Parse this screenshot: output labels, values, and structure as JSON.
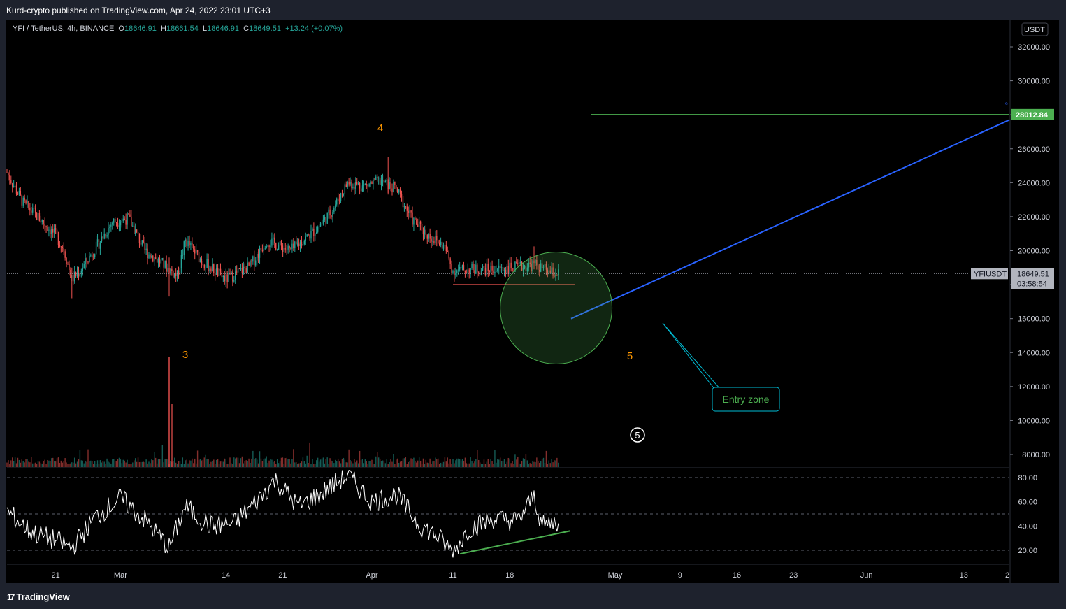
{
  "header": {
    "published": "Kurd-crypto published on TradingView.com, Apr 24, 2022 23:01 UTC+3"
  },
  "legend": {
    "symbol": "YFI / TetherUS, 4h, BINANCE",
    "o_label": "O",
    "o_value": "18646.91",
    "h_label": "H",
    "h_value": "18661.54",
    "l_label": "L",
    "l_value": "18646.91",
    "c_label": "C",
    "c_value": "18649.51",
    "change": "+13.24 (+0.07%)"
  },
  "currency_badge": "USDT",
  "price_scale": [
    "32000.00",
    "30000.00",
    "28000.00",
    "26000.00",
    "24000.00",
    "22000.00",
    "20000.00",
    "18000.00",
    "16000.00",
    "14000.00",
    "12000.00",
    "10000.00",
    "8000.00"
  ],
  "target_label": "28012.84",
  "last_price": {
    "symbol": "YFIUSDT",
    "value": "18649.51",
    "countdown": "03:58:54"
  },
  "rsi_scale": [
    "80.00",
    "60.00",
    "40.00",
    "20.00"
  ],
  "time_axis": [
    "21",
    "Mar",
    "14",
    "21",
    "Apr",
    "11",
    "18",
    "May",
    "9",
    "16",
    "23",
    "Jun",
    "13",
    "2"
  ],
  "annotations": {
    "wave3": "3",
    "wave4": "4",
    "wave5": "5",
    "wave5_circled": "5",
    "entry_zone": "Entry zone"
  },
  "footer": {
    "brand": "TradingView"
  },
  "colors": {
    "up": "#26a69a",
    "down": "#ef5350",
    "target": "#4caf50",
    "projection": "#2962ff",
    "wave_label": "#ff9800",
    "callout": "#00bcd4",
    "callout_text": "#4caf50",
    "rsi": "#ffffff"
  },
  "chart_data": {
    "type": "candlestick",
    "title": "YFI / TetherUS, 4h, BINANCE",
    "price_ylim": [
      7500,
      33000
    ],
    "rsi_ylim": [
      10,
      88
    ],
    "close_path": [
      {
        "date": "2022-02-15",
        "price": 24600
      },
      {
        "date": "2022-02-17",
        "price": 22800
      },
      {
        "date": "2022-02-19",
        "price": 21900
      },
      {
        "date": "2022-02-21",
        "price": 20900
      },
      {
        "date": "2022-02-22",
        "price": 20100
      },
      {
        "date": "2022-02-23",
        "price": 18300
      },
      {
        "date": "2022-02-24",
        "price": 18800
      },
      {
        "date": "2022-02-26",
        "price": 20200
      },
      {
        "date": "2022-02-28",
        "price": 21700
      },
      {
        "date": "2022-03-02",
        "price": 21900
      },
      {
        "date": "2022-03-04",
        "price": 20000
      },
      {
        "date": "2022-03-06",
        "price": 19300
      },
      {
        "date": "2022-03-08",
        "price": 18500
      },
      {
        "date": "2022-03-09",
        "price": 20600
      },
      {
        "date": "2022-03-11",
        "price": 19400
      },
      {
        "date": "2022-03-14",
        "price": 18300
      },
      {
        "date": "2022-03-17",
        "price": 19100
      },
      {
        "date": "2022-03-19",
        "price": 20600
      },
      {
        "date": "2022-03-22",
        "price": 20000
      },
      {
        "date": "2022-03-25",
        "price": 21200
      },
      {
        "date": "2022-03-27",
        "price": 22300
      },
      {
        "date": "2022-03-29",
        "price": 24000
      },
      {
        "date": "2022-03-31",
        "price": 23800
      },
      {
        "date": "2022-04-02",
        "price": 24100
      },
      {
        "date": "2022-04-04",
        "price": 23600
      },
      {
        "date": "2022-04-06",
        "price": 21800
      },
      {
        "date": "2022-04-08",
        "price": 20900
      },
      {
        "date": "2022-04-10",
        "price": 20200
      },
      {
        "date": "2022-04-11",
        "price": 18800
      },
      {
        "date": "2022-04-13",
        "price": 18900
      },
      {
        "date": "2022-04-16",
        "price": 18900
      },
      {
        "date": "2022-04-19",
        "price": 19000
      },
      {
        "date": "2022-04-21",
        "price": 19200
      },
      {
        "date": "2022-04-23",
        "price": 18700
      },
      {
        "date": "2022-04-24",
        "price": 18650
      }
    ],
    "rsi_path": [
      {
        "date": "2022-02-15",
        "value": 52
      },
      {
        "date": "2022-02-18",
        "value": 35
      },
      {
        "date": "2022-02-21",
        "value": 28
      },
      {
        "date": "2022-02-23",
        "value": 22
      },
      {
        "date": "2022-02-26",
        "value": 48
      },
      {
        "date": "2022-03-01",
        "value": 63
      },
      {
        "date": "2022-03-04",
        "value": 45
      },
      {
        "date": "2022-03-07",
        "value": 22
      },
      {
        "date": "2022-03-09",
        "value": 56
      },
      {
        "date": "2022-03-12",
        "value": 40
      },
      {
        "date": "2022-03-15",
        "value": 42
      },
      {
        "date": "2022-03-18",
        "value": 62
      },
      {
        "date": "2022-03-20",
        "value": 78
      },
      {
        "date": "2022-03-23",
        "value": 56
      },
      {
        "date": "2022-03-26",
        "value": 68
      },
      {
        "date": "2022-03-29",
        "value": 82
      },
      {
        "date": "2022-04-01",
        "value": 60
      },
      {
        "date": "2022-04-04",
        "value": 66
      },
      {
        "date": "2022-04-07",
        "value": 40
      },
      {
        "date": "2022-04-09",
        "value": 32
      },
      {
        "date": "2022-04-11",
        "value": 18
      },
      {
        "date": "2022-04-13",
        "value": 38
      },
      {
        "date": "2022-04-16",
        "value": 46
      },
      {
        "date": "2022-04-19",
        "value": 44
      },
      {
        "date": "2022-04-21",
        "value": 65
      },
      {
        "date": "2022-04-22",
        "value": 40
      },
      {
        "date": "2022-04-24",
        "value": 44
      }
    ],
    "volume_spike": {
      "date": "2022-03-07",
      "note": "largest volume bar"
    },
    "drawings": {
      "support_line": {
        "from": "2022-04-11",
        "to": "2022-04-26",
        "price": 18000
      },
      "target_line": {
        "from": "2022-04-28",
        "to": "2022-07-02",
        "price": 28012.84
      },
      "projection": {
        "from": {
          "date": "2022-04-26",
          "price": 16000
        },
        "to": {
          "date": "2022-07-02",
          "price": 27700
        }
      },
      "entry_zone_circle": {
        "center": {
          "date": "2022-04-22",
          "price": 16500
        }
      },
      "rsi_divergence": {
        "from": {
          "date": "2022-04-11",
          "value": 17
        },
        "to": {
          "date": "2022-04-24",
          "value": 36
        }
      }
    },
    "wave_labels": [
      {
        "text": "3",
        "date": "2022-03-07",
        "price": 14000
      },
      {
        "text": "4",
        "date": "2022-04-02",
        "price": 28500
      },
      {
        "text": "5",
        "date": "2022-05-01",
        "price": 14000
      }
    ]
  }
}
